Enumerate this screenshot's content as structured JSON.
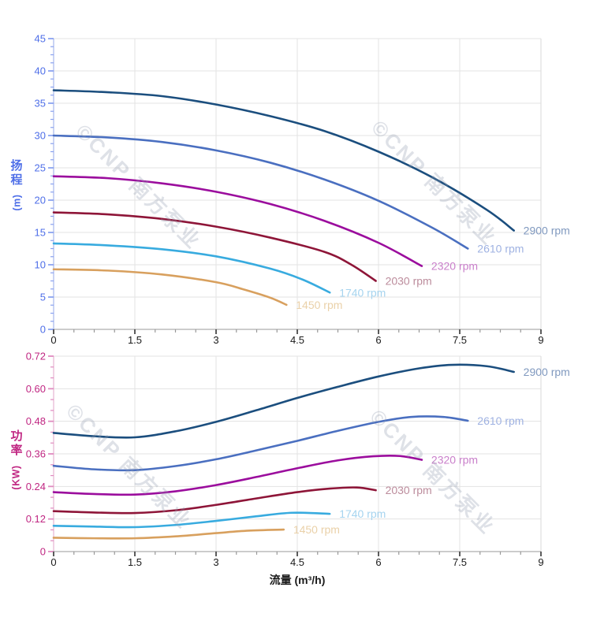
{
  "watermark": "©CNP 南方泵业",
  "chart_data": [
    {
      "type": "line",
      "chart": "head-vs-flow",
      "title": "",
      "xlabel": "",
      "ylabel": "扬程 (m)",
      "ylabel_chars": [
        "扬",
        "程"
      ],
      "ylabel_unit": "(m)",
      "xlim": [
        0,
        9
      ],
      "ylim": [
        0,
        45
      ],
      "x_tick_values": [
        0,
        1.5,
        3,
        4.5,
        6,
        7.5,
        9
      ],
      "x_tick_labels": [
        "0",
        "1.5",
        "3",
        "4.5",
        "6",
        "7.5",
        "9"
      ],
      "y_tick_values": [
        0,
        5,
        10,
        15,
        20,
        25,
        30,
        35,
        40,
        45
      ],
      "y_tick_labels": [
        "0",
        "5",
        "10",
        "15",
        "20",
        "25",
        "30",
        "35",
        "40",
        "45"
      ],
      "grid": true,
      "legend_position": "labels-at-line-ends",
      "axis_text_color": "#4f6fe8",
      "tick_color": "#8aa2f0",
      "axis_line_color": "#b9c6f0",
      "x_tick_text_color": "#1a1a1a",
      "series": [
        {
          "name": "2900 rpm",
          "rpm": 2900,
          "color": "#1b4e7e",
          "label_color": "#8099bf",
          "x": [
            0,
            1,
            2,
            3,
            4,
            5,
            6,
            7,
            8,
            8.5
          ],
          "y": [
            37,
            36.7,
            36.1,
            34.8,
            33.0,
            30.7,
            27.5,
            23.5,
            18.5,
            15.3
          ]
        },
        {
          "name": "2610 rpm",
          "rpm": 2610,
          "color": "#4a6fc0",
          "label_color": "#9fb2e2",
          "x": [
            0,
            1,
            2,
            3,
            4,
            5,
            6,
            7,
            7.65
          ],
          "y": [
            30,
            29.7,
            29.0,
            27.7,
            25.8,
            23.2,
            19.9,
            15.7,
            12.5
          ]
        },
        {
          "name": "2320 rpm",
          "rpm": 2320,
          "color": "#9b0d9d",
          "label_color": "#c97fca",
          "x": [
            0,
            1,
            2,
            3,
            4,
            5,
            6,
            6.8
          ],
          "y": [
            23.7,
            23.4,
            22.6,
            21.3,
            19.4,
            16.8,
            13.4,
            9.8
          ]
        },
        {
          "name": "2030 rpm",
          "rpm": 2030,
          "color": "#8e1538",
          "label_color": "#bc8c9c",
          "x": [
            0,
            1,
            2,
            3,
            4,
            5,
            5.5,
            5.95
          ],
          "y": [
            18.1,
            17.8,
            17.1,
            15.9,
            14.2,
            12.0,
            10.0,
            7.5
          ]
        },
        {
          "name": "1740 rpm",
          "rpm": 1740,
          "color": "#38abdf",
          "label_color": "#a6d4ef",
          "x": [
            0,
            1,
            2,
            3,
            4,
            4.6,
            5.1
          ],
          "y": [
            13.3,
            13.0,
            12.4,
            11.3,
            9.4,
            7.7,
            5.7
          ]
        },
        {
          "name": "1450 rpm",
          "rpm": 1450,
          "color": "#d8a05e",
          "label_color": "#ead1a9",
          "x": [
            0,
            1,
            2,
            3,
            3.5,
            4,
            4.3
          ],
          "y": [
            9.3,
            9.1,
            8.5,
            7.3,
            6.2,
            4.9,
            3.8
          ]
        }
      ]
    },
    {
      "type": "line",
      "chart": "power-vs-flow",
      "title": "",
      "xlabel": "流量 (m³/h)",
      "ylabel": "功率 (KW)",
      "ylabel_chars": [
        "功",
        "率"
      ],
      "ylabel_unit": "(KW)",
      "xlim": [
        0,
        9
      ],
      "ylim": [
        0,
        0.72
      ],
      "x_tick_values": [
        0,
        1.5,
        3,
        4.5,
        6,
        7.5,
        9
      ],
      "x_tick_labels": [
        "0",
        "1.5",
        "3",
        "4.5",
        "6",
        "7.5",
        "9"
      ],
      "y_tick_values": [
        0,
        0.12,
        0.24,
        0.36,
        0.48,
        0.6,
        0.72
      ],
      "y_tick_labels": [
        "0",
        "0.12",
        "0.24",
        "0.36",
        "0.48",
        "0.60",
        "0.72"
      ],
      "grid": true,
      "legend_position": "labels-at-line-ends",
      "axis_text_color": "#c02682",
      "tick_color": "#e08bc0",
      "axis_line_color": "#ecc3dc",
      "x_tick_text_color": "#1a1a1a",
      "series": [
        {
          "name": "2900 rpm",
          "rpm": 2900,
          "color": "#1b4e7e",
          "label_color": "#8099bf",
          "x": [
            0,
            0.75,
            1.5,
            2.25,
            3,
            3.75,
            4.5,
            5.25,
            6,
            6.75,
            7.35,
            8,
            8.5
          ],
          "y": [
            0.437,
            0.425,
            0.421,
            0.443,
            0.478,
            0.521,
            0.566,
            0.607,
            0.645,
            0.675,
            0.688,
            0.683,
            0.662
          ]
        },
        {
          "name": "2610 rpm",
          "rpm": 2610,
          "color": "#4a6fc0",
          "label_color": "#9fb2e2",
          "x": [
            0,
            0.75,
            1.5,
            2.25,
            3,
            3.75,
            4.5,
            5.25,
            6,
            6.6,
            7.2,
            7.65
          ],
          "y": [
            0.316,
            0.303,
            0.3,
            0.315,
            0.34,
            0.373,
            0.408,
            0.445,
            0.478,
            0.496,
            0.496,
            0.482
          ]
        },
        {
          "name": "2320 rpm",
          "rpm": 2320,
          "color": "#9b0d9d",
          "label_color": "#c97fca",
          "x": [
            0,
            0.75,
            1.5,
            2.25,
            3,
            3.75,
            4.5,
            5.25,
            5.9,
            6.4,
            6.8
          ],
          "y": [
            0.219,
            0.212,
            0.21,
            0.222,
            0.245,
            0.275,
            0.307,
            0.336,
            0.351,
            0.352,
            0.338
          ]
        },
        {
          "name": "2030 rpm",
          "rpm": 2030,
          "color": "#8e1538",
          "label_color": "#bc8c9c",
          "x": [
            0,
            0.75,
            1.5,
            2.25,
            3,
            3.75,
            4.5,
            5.1,
            5.6,
            5.95
          ],
          "y": [
            0.149,
            0.144,
            0.142,
            0.152,
            0.172,
            0.196,
            0.219,
            0.232,
            0.236,
            0.226
          ]
        },
        {
          "name": "1740 rpm",
          "rpm": 1740,
          "color": "#38abdf",
          "label_color": "#a6d4ef",
          "x": [
            0,
            0.75,
            1.5,
            2.25,
            3,
            3.75,
            4.4,
            5.1
          ],
          "y": [
            0.095,
            0.092,
            0.09,
            0.098,
            0.113,
            0.13,
            0.143,
            0.139
          ]
        },
        {
          "name": "1450 rpm",
          "rpm": 1450,
          "color": "#d8a05e",
          "label_color": "#ead1a9",
          "x": [
            0,
            0.75,
            1.5,
            2.25,
            3,
            3.6,
            4.25
          ],
          "y": [
            0.051,
            0.049,
            0.049,
            0.056,
            0.068,
            0.077,
            0.081
          ]
        }
      ]
    }
  ]
}
